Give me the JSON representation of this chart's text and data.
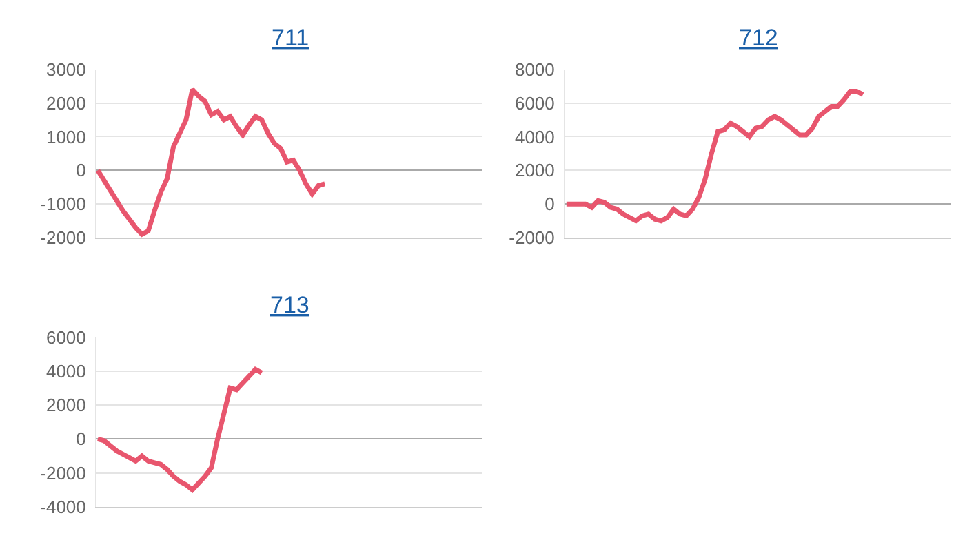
{
  "chart_data": [
    {
      "type": "line",
      "title": "711",
      "categories": [
        null,
        null,
        null,
        null,
        null,
        null,
        null,
        null,
        null,
        null,
        null,
        null,
        null,
        null,
        null,
        null,
        null,
        null,
        null,
        null,
        null,
        null,
        null,
        null,
        null,
        null,
        null,
        null,
        null,
        null,
        null,
        null,
        null,
        null,
        null,
        null,
        null,
        null,
        null,
        null,
        null,
        null,
        null,
        null,
        null,
        null,
        null,
        null,
        null,
        null,
        null,
        null,
        null,
        null,
        null,
        null,
        null,
        null,
        null,
        null,
        null,
        null
      ],
      "series": [
        {
          "color": "#e8566e",
          "values": [
            0,
            -300,
            -600,
            -900,
            -1200,
            -1450,
            -1700,
            -1900,
            -1800,
            -1200,
            -650,
            -250,
            700,
            1100,
            1500,
            2400,
            2200,
            2050,
            1650,
            1750,
            1500,
            1600,
            1300,
            1050,
            1350,
            1600,
            1500,
            1100,
            800,
            650,
            250,
            300,
            0,
            -400,
            -700,
            -450,
            -400,
            null,
            null,
            null,
            null,
            null,
            null,
            null,
            null,
            null,
            null,
            null,
            null,
            null,
            null,
            null,
            null,
            null,
            null,
            null,
            null,
            null,
            null,
            null,
            null,
            null
          ]
        }
      ],
      "ylim": [
        -2000,
        3000
      ],
      "yticks": [
        -2000,
        -1000,
        0,
        1000,
        2000,
        3000
      ],
      "grid": "y",
      "tick_labels": "y",
      "marker": "none",
      "line_style": "solid"
    },
    {
      "type": "line",
      "title": "712",
      "categories": [
        null,
        null,
        null,
        null,
        null,
        null,
        null,
        null,
        null,
        null,
        null,
        null,
        null,
        null,
        null,
        null,
        null,
        null,
        null,
        null,
        null,
        null,
        null,
        null,
        null,
        null,
        null,
        null,
        null,
        null,
        null,
        null,
        null,
        null,
        null,
        null,
        null,
        null,
        null,
        null,
        null,
        null,
        null,
        null,
        null,
        null,
        null,
        null,
        null,
        null,
        null,
        null,
        null,
        null,
        null,
        null,
        null,
        null,
        null,
        null,
        null,
        null
      ],
      "series": [
        {
          "color": "#e8566e",
          "values": [
            0,
            0,
            0,
            0,
            -200,
            200,
            100,
            -200,
            -300,
            -600,
            -800,
            -1000,
            -700,
            -600,
            -900,
            -1000,
            -800,
            -300,
            -600,
            -700,
            -300,
            400,
            1500,
            3000,
            4300,
            4400,
            4800,
            4600,
            4300,
            4000,
            4500,
            4600,
            5000,
            5200,
            5000,
            4700,
            4400,
            4100,
            4100,
            4500,
            5200,
            5500,
            5800,
            5800,
            6200,
            6700,
            6700,
            6500,
            null,
            null,
            null,
            null,
            null,
            null,
            null,
            null,
            null,
            null,
            null,
            null,
            null,
            null
          ]
        }
      ],
      "ylim": [
        -2000,
        8000
      ],
      "yticks": [
        -2000,
        0,
        2000,
        4000,
        6000,
        8000
      ],
      "grid": "y",
      "tick_labels": "y",
      "marker": "none",
      "line_style": "solid"
    },
    {
      "type": "line",
      "title": "713",
      "categories": [
        null,
        null,
        null,
        null,
        null,
        null,
        null,
        null,
        null,
        null,
        null,
        null,
        null,
        null,
        null,
        null,
        null,
        null,
        null,
        null,
        null,
        null,
        null,
        null,
        null,
        null,
        null,
        null,
        null,
        null,
        null,
        null,
        null,
        null,
        null,
        null,
        null,
        null,
        null,
        null,
        null,
        null,
        null,
        null,
        null,
        null,
        null,
        null,
        null,
        null,
        null,
        null,
        null,
        null,
        null,
        null,
        null,
        null,
        null,
        null,
        null,
        null
      ],
      "series": [
        {
          "color": "#e8566e",
          "values": [
            0,
            -100,
            -400,
            -700,
            -900,
            -1100,
            -1300,
            -1000,
            -1300,
            -1400,
            -1500,
            -1800,
            -2200,
            -2500,
            -2700,
            -3000,
            -2600,
            -2200,
            -1700,
            0,
            1500,
            3000,
            2900,
            3300,
            3700,
            4100,
            3900,
            null,
            null,
            null,
            null,
            null,
            null,
            null,
            null,
            null,
            null,
            null,
            null,
            null,
            null,
            null,
            null,
            null,
            null,
            null,
            null,
            null,
            null,
            null,
            null,
            null,
            null,
            null,
            null,
            null,
            null,
            null,
            null,
            null,
            null,
            null
          ]
        }
      ],
      "ylim": [
        -4000,
        6000
      ],
      "yticks": [
        -4000,
        -2000,
        0,
        2000,
        4000,
        6000
      ],
      "grid": "y",
      "tick_labels": "y",
      "marker": "none",
      "line_style": "solid"
    }
  ]
}
